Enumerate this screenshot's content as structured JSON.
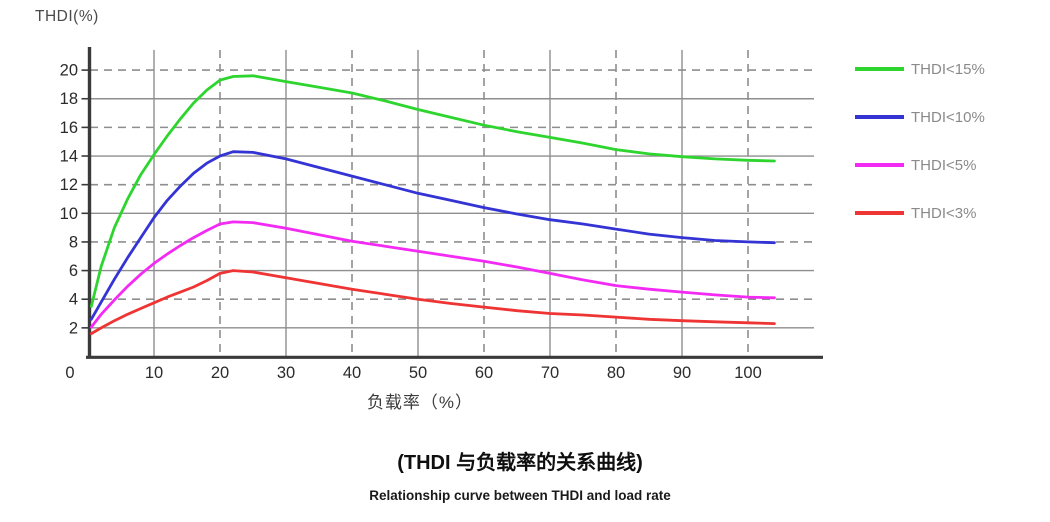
{
  "captions": {
    "chinese": "(THDI 与负载率的关系曲线)",
    "english": "Relationship curve between THDI and load rate"
  },
  "colors": {
    "grid": "#8e8e8e",
    "axis": "#3a3a3a",
    "tick_label": "#2b2b2b",
    "legend_text": "#8a8a8a"
  },
  "chart_data": {
    "type": "line",
    "title": "(THDI 与负载率的关系曲线)",
    "xlabel": "负载率（%）",
    "ylabel": "THDI(%)",
    "xlim": [
      0,
      110
    ],
    "ylim": [
      0,
      21.4
    ],
    "xticks": [
      0,
      10,
      20,
      30,
      40,
      50,
      60,
      70,
      80,
      90,
      100
    ],
    "yticks": [
      2,
      4,
      6,
      8,
      10,
      12,
      14,
      16,
      18,
      20
    ],
    "grid": {
      "x_solid": [
        10,
        30,
        50,
        70,
        90
      ],
      "x_dashed": [
        20,
        40,
        60,
        80,
        100
      ],
      "y_solid": [
        2,
        6,
        10,
        14,
        18
      ],
      "y_dashed": [
        4,
        8,
        12,
        16,
        20
      ]
    },
    "legend_position": "right",
    "x": [
      0.5,
      2,
      4,
      6,
      8,
      10,
      12,
      14,
      16,
      18,
      20,
      22,
      25,
      30,
      35,
      40,
      45,
      50,
      55,
      60,
      65,
      70,
      75,
      80,
      85,
      90,
      95,
      100,
      104
    ],
    "series": [
      {
        "name": "THDI<15%",
        "color": "#2ed52e",
        "values": [
          3.5,
          6.3,
          9.0,
          11.0,
          12.7,
          14.1,
          15.4,
          16.6,
          17.7,
          18.6,
          19.3,
          19.55,
          19.6,
          19.2,
          18.8,
          18.4,
          17.85,
          17.25,
          16.7,
          16.15,
          15.7,
          15.3,
          14.9,
          14.45,
          14.15,
          13.95,
          13.8,
          13.7,
          13.65
        ]
      },
      {
        "name": "THDI<10%",
        "color": "#3434d4",
        "values": [
          2.6,
          3.8,
          5.4,
          6.9,
          8.3,
          9.7,
          10.9,
          11.9,
          12.8,
          13.5,
          14.0,
          14.3,
          14.25,
          13.8,
          13.2,
          12.6,
          12.0,
          11.4,
          10.9,
          10.4,
          9.95,
          9.55,
          9.25,
          8.9,
          8.55,
          8.3,
          8.1,
          8.0,
          7.95
        ]
      },
      {
        "name": "THDI<5%",
        "color": "#f32af3",
        "values": [
          2.05,
          2.95,
          3.95,
          4.9,
          5.75,
          6.5,
          7.15,
          7.75,
          8.3,
          8.8,
          9.25,
          9.4,
          9.35,
          8.95,
          8.5,
          8.05,
          7.7,
          7.35,
          7.0,
          6.65,
          6.25,
          5.8,
          5.35,
          4.95,
          4.7,
          4.5,
          4.3,
          4.15,
          4.1
        ]
      },
      {
        "name": "THDI<3%",
        "color": "#ef3434",
        "values": [
          1.6,
          2.0,
          2.5,
          2.95,
          3.35,
          3.75,
          4.15,
          4.5,
          4.85,
          5.3,
          5.8,
          6.0,
          5.9,
          5.5,
          5.1,
          4.7,
          4.35,
          4.0,
          3.7,
          3.45,
          3.2,
          3.0,
          2.9,
          2.75,
          2.6,
          2.5,
          2.42,
          2.35,
          2.3
        ]
      }
    ]
  }
}
